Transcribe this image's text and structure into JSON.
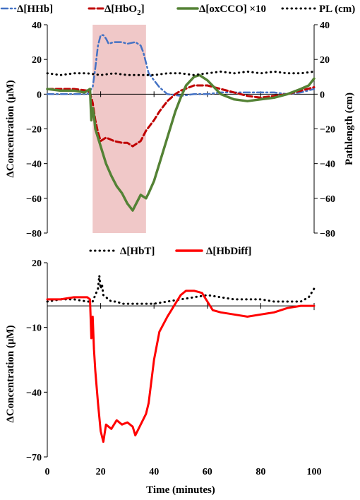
{
  "chart_data": [
    {
      "type": "line",
      "xlim": [
        0,
        100
      ],
      "ylim": [
        -80,
        40
      ],
      "y2lim": [
        -80,
        40
      ],
      "yticks": [
        "40",
        "20",
        "0",
        "−20",
        "−40",
        "−60",
        "−80"
      ],
      "y2ticks": [
        "40",
        "20",
        "0",
        "−20",
        "−40",
        "−60",
        "−80"
      ],
      "ylabel": "ΔConcentration (μM)",
      "y2label": "Pathlength (cm)",
      "xlabel": "",
      "shaded_region": {
        "x": [
          17,
          37
        ],
        "color": "#f0c8c8"
      },
      "legend_position": "top",
      "series": [
        {
          "name": "Δ[HHb]",
          "color": "#4472c4",
          "style": "dash-dot",
          "x": [
            0,
            5,
            10,
            15,
            16,
            17,
            18,
            19,
            20,
            21,
            22,
            23,
            25,
            28,
            30,
            33,
            35,
            36,
            37,
            38,
            40,
            42,
            45,
            50,
            55,
            60,
            65,
            70,
            75,
            80,
            85,
            90,
            95,
            100
          ],
          "y": [
            0,
            0,
            0,
            0,
            2,
            4,
            15,
            28,
            34,
            34,
            32,
            29,
            30,
            30,
            29,
            30,
            28,
            24,
            18,
            12,
            8,
            4,
            0,
            -1,
            0,
            0,
            1,
            1,
            1,
            1,
            1,
            0,
            1,
            3
          ]
        },
        {
          "name": "Δ[HbO2]",
          "color": "#c00000",
          "style": "dashed",
          "x": [
            0,
            5,
            10,
            15,
            16,
            17,
            18,
            19,
            20,
            22,
            25,
            28,
            30,
            32,
            33,
            35,
            37,
            40,
            42,
            45,
            48,
            50,
            55,
            60,
            65,
            70,
            75,
            80,
            85,
            90,
            95,
            100
          ],
          "y": [
            3,
            3,
            3,
            2,
            1,
            -5,
            -15,
            -22,
            -27,
            -25,
            -27,
            -28,
            -28,
            -30,
            -29,
            -27,
            -21,
            -15,
            -10,
            -4,
            0,
            2,
            5,
            5,
            3,
            1,
            -1,
            -2,
            -1,
            0,
            2,
            4
          ]
        },
        {
          "name": "Δ[oxCCO] ×10",
          "color": "#548235",
          "style": "solid",
          "x": [
            0,
            5,
            10,
            14,
            15,
            16,
            16.5,
            17,
            17.5,
            18,
            19,
            20,
            22,
            24,
            26,
            28,
            30,
            31,
            32,
            33,
            34,
            35,
            36,
            37,
            38,
            40,
            42,
            45,
            48,
            50,
            52,
            55,
            57,
            60,
            65,
            70,
            75,
            80,
            85,
            90,
            95,
            98,
            100
          ],
          "y": [
            3,
            2,
            2,
            1,
            2,
            3,
            -15,
            -8,
            -12,
            -20,
            -25,
            -30,
            -40,
            -47,
            -53,
            -57,
            -63,
            -65,
            -67,
            -64,
            -61,
            -58,
            -59,
            -60,
            -57,
            -50,
            -40,
            -25,
            -10,
            -2,
            5,
            10,
            11,
            8,
            0,
            -3,
            -4,
            -3,
            -2,
            0,
            3,
            5,
            9
          ]
        },
        {
          "name": "PL (cm)",
          "color": "#000000",
          "style": "dotted",
          "axis": "right",
          "x": [
            0,
            5,
            10,
            15,
            20,
            25,
            30,
            35,
            40,
            45,
            50,
            55,
            60,
            65,
            70,
            75,
            80,
            85,
            90,
            95,
            100
          ],
          "y": [
            12,
            11,
            12,
            12,
            11,
            12,
            11,
            11,
            11,
            12,
            12,
            11,
            12,
            13,
            12,
            13,
            12,
            13,
            12,
            12,
            13
          ]
        }
      ]
    },
    {
      "type": "line",
      "xlim": [
        0,
        100
      ],
      "ylim": [
        -70,
        20
      ],
      "yticks": [
        "20",
        "−10",
        "−40",
        "−70"
      ],
      "xticks": [
        "0",
        "20",
        "40",
        "60",
        "80",
        "100"
      ],
      "ylabel": "ΔConcentration (μM)",
      "xlabel": "Time (minutes)",
      "legend_position": "top",
      "series": [
        {
          "name": "Δ[HbT]",
          "color": "#000000",
          "style": "dotted",
          "x": [
            0,
            5,
            10,
            15,
            17,
            18,
            19,
            19.5,
            20,
            20.5,
            21,
            22,
            24,
            26,
            28,
            30,
            35,
            40,
            45,
            50,
            55,
            60,
            65,
            70,
            75,
            80,
            85,
            90,
            95,
            98,
            100
          ],
          "y": [
            2,
            3,
            3,
            2,
            2,
            5,
            8,
            14,
            8,
            10,
            5,
            4,
            2,
            2,
            1,
            1,
            1,
            1,
            2,
            3,
            4,
            5,
            4,
            3,
            3,
            3,
            2,
            2,
            2,
            4,
            8
          ]
        },
        {
          "name": "Δ[HbDiff]",
          "color": "#ff0000",
          "style": "solid",
          "x": [
            0,
            5,
            10,
            15,
            16,
            16.5,
            17,
            17.5,
            18,
            19,
            20,
            21,
            22,
            24,
            26,
            28,
            30,
            32,
            33,
            35,
            37,
            38,
            40,
            42,
            45,
            48,
            50,
            52,
            55,
            58,
            60,
            62,
            65,
            70,
            75,
            80,
            85,
            90,
            95,
            100
          ],
          "y": [
            3,
            3,
            4,
            4,
            3,
            -15,
            -5,
            -20,
            -30,
            -45,
            -58,
            -63,
            -55,
            -57,
            -53,
            -55,
            -54,
            -56,
            -60,
            -55,
            -50,
            -45,
            -25,
            -12,
            -5,
            1,
            5,
            7,
            7,
            6,
            2,
            -2,
            -3,
            -4,
            -5,
            -4,
            -3,
            -1,
            0,
            0
          ]
        }
      ]
    }
  ]
}
